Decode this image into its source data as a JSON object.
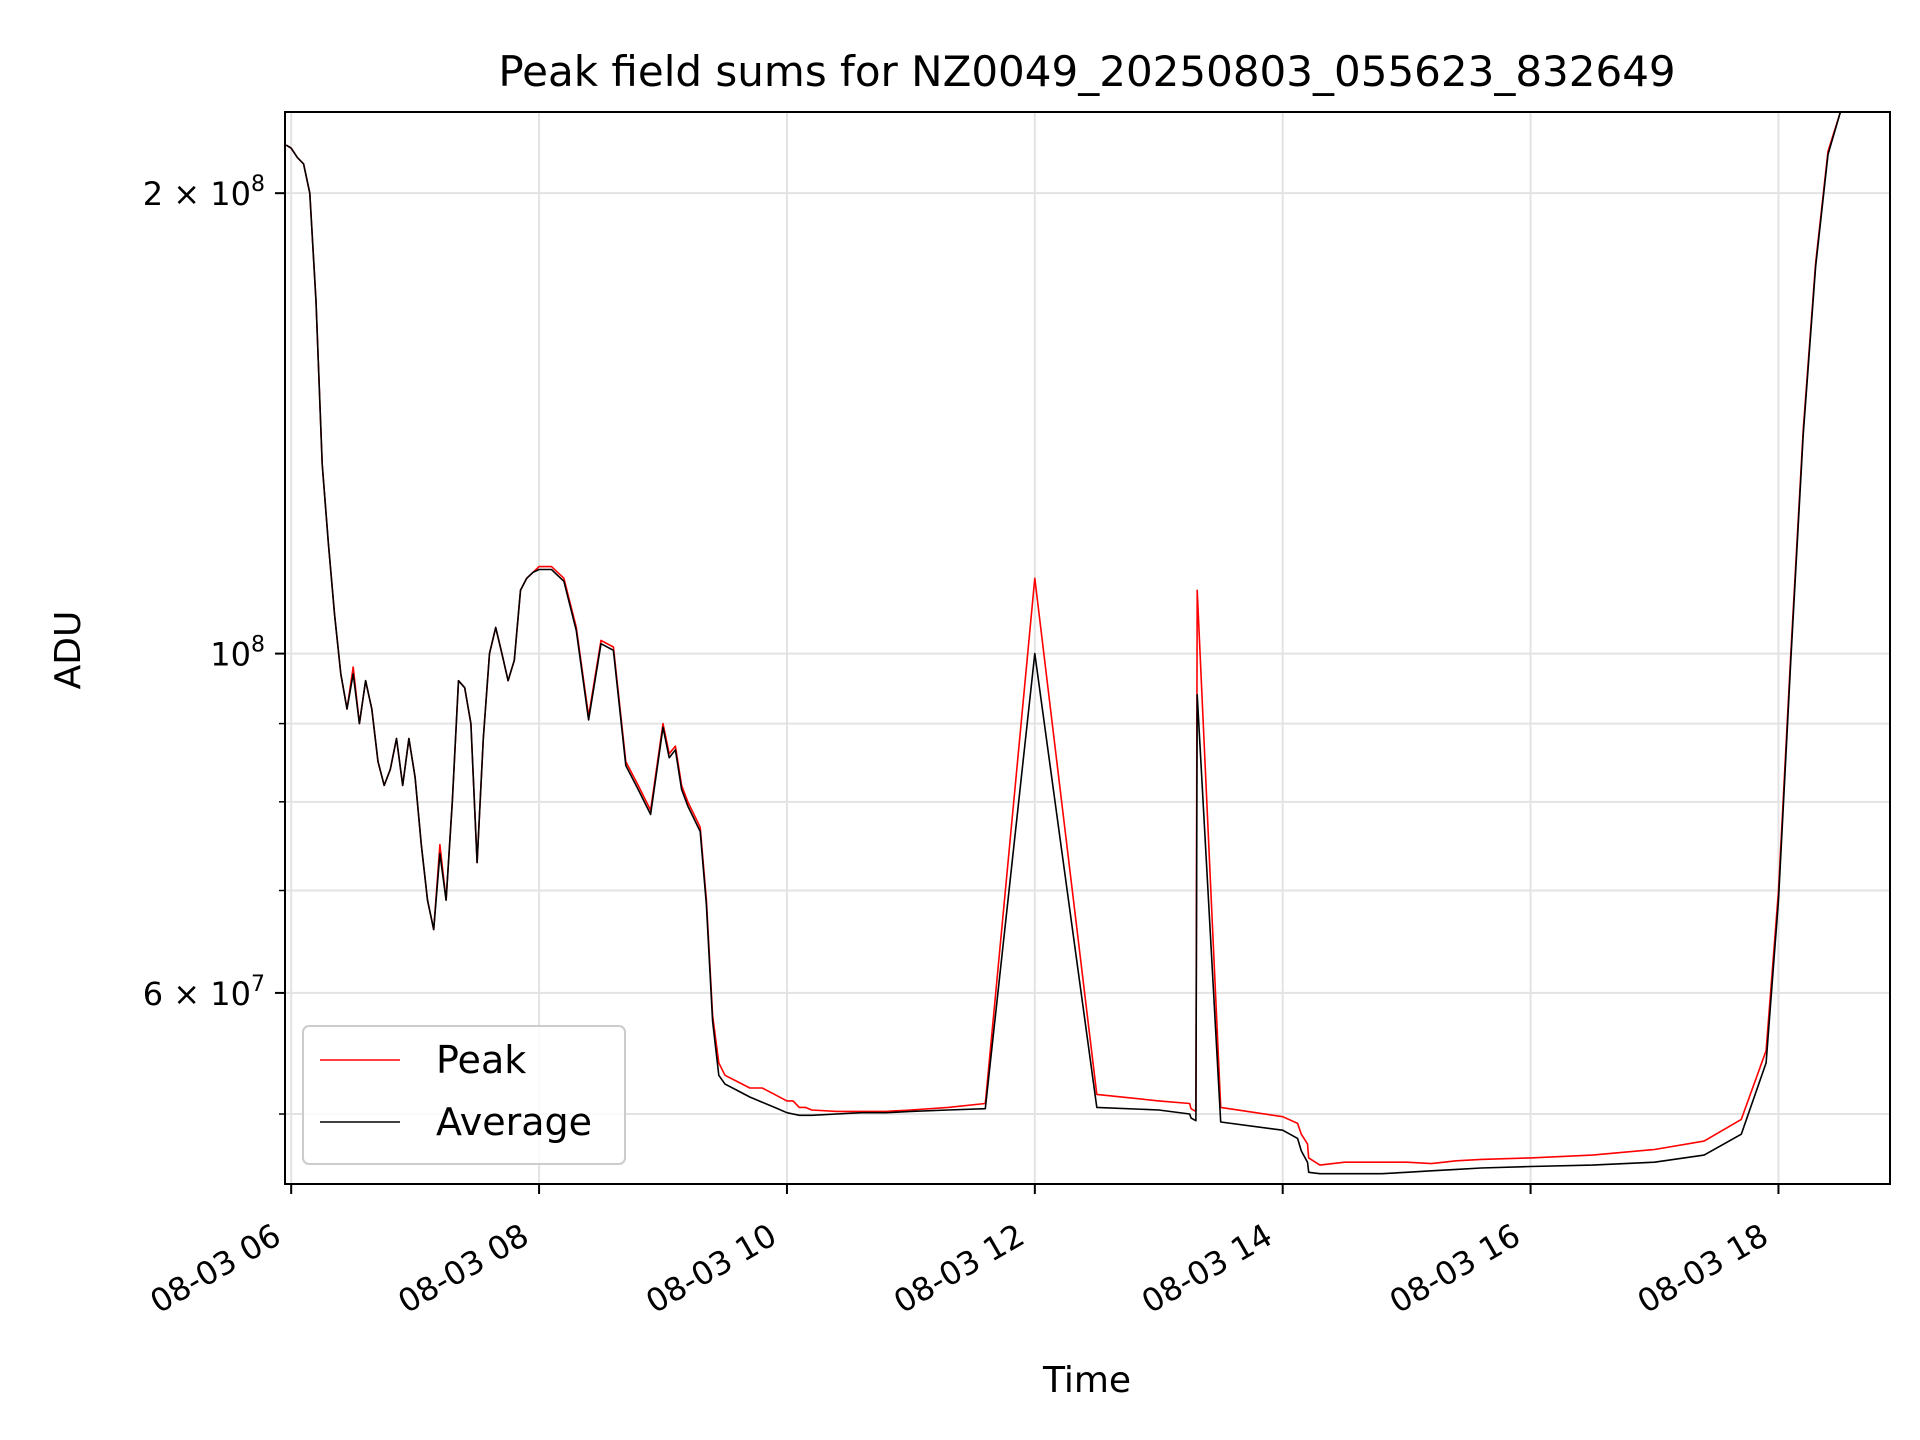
{
  "chart_data": {
    "type": "line",
    "title": "Peak field sums for NZ0049_20250803_055623_832649",
    "xlabel": "Time",
    "ylabel": "ADU",
    "x_unit": "hour of 2025-08-03",
    "xlim": [
      5.95,
      18.9
    ],
    "ylim": [
      45000000,
      226000000
    ],
    "y_scale": "log",
    "grid": true,
    "legend_position": "lower-left",
    "x_ticks": [
      {
        "value": 6,
        "label": "08-03 06"
      },
      {
        "value": 8,
        "label": "08-03 08"
      },
      {
        "value": 10,
        "label": "08-03 10"
      },
      {
        "value": 12,
        "label": "08-03 12"
      },
      {
        "value": 14,
        "label": "08-03 14"
      },
      {
        "value": 16,
        "label": "08-03 16"
      },
      {
        "value": 18,
        "label": "08-03 18"
      }
    ],
    "y_ticks": [
      {
        "value": 200000000,
        "base": "2 × 10",
        "exp": "8"
      },
      {
        "value": 100000000,
        "base": "10",
        "exp": "8"
      },
      {
        "value": 60000000,
        "base": "6 × 10",
        "exp": "7"
      }
    ],
    "y_minor_ticks": [
      50000000,
      70000000,
      80000000,
      90000000
    ],
    "series": [
      {
        "name": "Peak",
        "color": "#ff0000",
        "x": [
          5.96,
          6.0,
          6.05,
          6.1,
          6.15,
          6.2,
          6.25,
          6.3,
          6.35,
          6.4,
          6.45,
          6.5,
          6.55,
          6.6,
          6.65,
          6.7,
          6.75,
          6.8,
          6.85,
          6.9,
          6.95,
          7.0,
          7.05,
          7.1,
          7.15,
          7.2,
          7.25,
          7.3,
          7.35,
          7.4,
          7.45,
          7.5,
          7.55,
          7.6,
          7.65,
          7.7,
          7.75,
          7.8,
          7.85,
          7.9,
          7.95,
          8.0,
          8.05,
          8.1,
          8.15,
          8.2,
          8.3,
          8.4,
          8.5,
          8.6,
          8.7,
          8.8,
          8.9,
          9.0,
          9.05,
          9.1,
          9.15,
          9.2,
          9.3,
          9.35,
          9.4,
          9.45,
          9.5,
          9.6,
          9.7,
          9.8,
          9.9,
          10.0,
          10.05,
          10.1,
          10.15,
          10.2,
          10.4,
          10.6,
          10.8,
          11.0,
          11.3,
          11.6,
          12.0,
          12.5,
          13.0,
          13.25,
          13.26,
          13.3,
          13.31,
          13.5,
          14.0,
          14.12,
          14.15,
          14.2,
          14.21,
          14.3,
          14.5,
          14.8,
          15.0,
          15.2,
          15.4,
          15.6,
          16.0,
          16.5,
          17.0,
          17.4,
          17.7,
          17.9,
          18.0,
          18.1,
          18.2,
          18.3,
          18.4,
          18.5,
          18.6,
          18.7,
          18.9
        ],
        "y": [
          215000000,
          214000000,
          211000000,
          209000000,
          200000000,
          170000000,
          133000000,
          118000000,
          106000000,
          97000000,
          92000000,
          98000000,
          90000000,
          96000000,
          92000000,
          85000000,
          82000000,
          84000000,
          88000000,
          82000000,
          88000000,
          83000000,
          75000000,
          69000000,
          66000000,
          75000000,
          69000000,
          80000000,
          96000000,
          95000000,
          90000000,
          73000000,
          88000000,
          100000000,
          104000000,
          100000000,
          96000000,
          99000000,
          110000000,
          112000000,
          113000000,
          114000000,
          114000000,
          114000000,
          113000000,
          112000000,
          104000000,
          91000000,
          102000000,
          101000000,
          85000000,
          82000000,
          79000000,
          90000000,
          86000000,
          87000000,
          82000000,
          80000000,
          77000000,
          69000000,
          58000000,
          54000000,
          53000000,
          52500000,
          52000000,
          52000000,
          51500000,
          51000000,
          51000000,
          50500000,
          50500000,
          50300000,
          50200000,
          50200000,
          50200000,
          50300000,
          50500000,
          50800000,
          112000000,
          51500000,
          51000000,
          50800000,
          50400000,
          50200000,
          110000000,
          50500000,
          49800000,
          49300000,
          48500000,
          47800000,
          46800000,
          46300000,
          46500000,
          46500000,
          46500000,
          46400000,
          46600000,
          46700000,
          46800000,
          47000000,
          47400000,
          48000000,
          49600000,
          55000000,
          70000000,
          100000000,
          140000000,
          180000000,
          213000000,
          226000000,
          226000000,
          226000000,
          226000000
        ]
      },
      {
        "name": "Average",
        "color": "#000000",
        "x": [
          5.96,
          6.0,
          6.05,
          6.1,
          6.15,
          6.2,
          6.25,
          6.3,
          6.35,
          6.4,
          6.45,
          6.5,
          6.55,
          6.6,
          6.65,
          6.7,
          6.75,
          6.8,
          6.85,
          6.9,
          6.95,
          7.0,
          7.05,
          7.1,
          7.15,
          7.2,
          7.25,
          7.3,
          7.35,
          7.4,
          7.45,
          7.5,
          7.55,
          7.6,
          7.65,
          7.7,
          7.75,
          7.8,
          7.85,
          7.9,
          7.95,
          8.0,
          8.05,
          8.1,
          8.15,
          8.2,
          8.3,
          8.4,
          8.5,
          8.6,
          8.7,
          8.8,
          8.9,
          9.0,
          9.05,
          9.1,
          9.15,
          9.2,
          9.3,
          9.35,
          9.4,
          9.45,
          9.5,
          9.6,
          9.7,
          9.8,
          9.9,
          10.0,
          10.05,
          10.1,
          10.15,
          10.2,
          10.4,
          10.6,
          10.8,
          11.0,
          11.3,
          11.6,
          12.0,
          12.5,
          13.0,
          13.25,
          13.26,
          13.3,
          13.31,
          13.5,
          14.0,
          14.12,
          14.15,
          14.2,
          14.21,
          14.3,
          14.5,
          14.8,
          15.0,
          15.2,
          15.4,
          15.6,
          16.0,
          16.5,
          17.0,
          17.4,
          17.7,
          17.9,
          18.0,
          18.1,
          18.2,
          18.3,
          18.4,
          18.5,
          18.6,
          18.7,
          18.9
        ],
        "y": [
          215000000,
          214000000,
          211000000,
          209000000,
          200000000,
          170000000,
          133000000,
          118000000,
          106000000,
          97000000,
          92000000,
          97000000,
          90000000,
          96000000,
          92000000,
          85000000,
          82000000,
          84000000,
          88000000,
          82000000,
          88000000,
          83000000,
          75000000,
          69000000,
          66000000,
          74000000,
          69000000,
          80000000,
          96000000,
          95000000,
          90000000,
          73000000,
          88000000,
          100000000,
          104000000,
          100000000,
          96000000,
          99000000,
          110000000,
          112000000,
          113000000,
          113500000,
          113500000,
          113500000,
          112500000,
          111500000,
          103500000,
          90500000,
          101500000,
          100500000,
          84500000,
          81500000,
          78500000,
          89500000,
          85500000,
          86500000,
          81500000,
          79500000,
          76500000,
          68500000,
          57500000,
          53000000,
          52300000,
          51800000,
          51300000,
          50900000,
          50500000,
          50100000,
          50000000,
          49900000,
          49900000,
          49900000,
          50000000,
          50100000,
          50100000,
          50200000,
          50300000,
          50400000,
          100000000,
          50500000,
          50300000,
          50000000,
          49700000,
          49500000,
          94000000,
          49400000,
          48800000,
          48200000,
          47300000,
          46500000,
          45800000,
          45700000,
          45700000,
          45700000,
          45800000,
          45900000,
          46000000,
          46100000,
          46200000,
          46300000,
          46500000,
          47000000,
          48500000,
          54000000,
          69000000,
          99000000,
          139000000,
          179000000,
          212000000,
          226000000,
          226000000,
          226000000,
          226000000
        ]
      }
    ]
  }
}
